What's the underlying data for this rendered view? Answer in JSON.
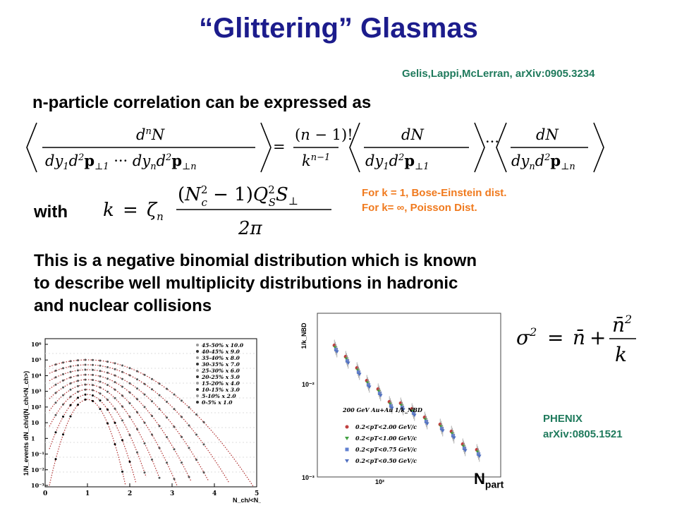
{
  "slide": {
    "title": "“Glittering” Glasmas",
    "reference": "Gelis,Lappi,McLerran, arXiv:0905.3234",
    "heading": "n-particle correlation can be expressed as",
    "with_label": "with",
    "notes": [
      "For k = 1, Bose-Einstein dist.",
      "For k= ∞,  Poisson Dist."
    ],
    "body_lines": [
      "This is a negative binomial distribution which is known",
      "to describe well multiplicity distributions in hadronic",
      "and nuclear collisions"
    ],
    "phenix_lines": [
      "PHENIX",
      "arXiv:0805.1521"
    ],
    "npart_main": "N",
    "npart_sub": "part"
  },
  "equations": {
    "correlation": "⟨dⁿN / dy₁d²p⊥1 ⋯ dyₙd²p⊥n⟩ = (n−1)!/kⁿ⁻¹ ⟨dN / dy₁d²p⊥1⟩ ⋯ ⟨dN / dyₙd²p⊥n⟩",
    "k_def": "k = ζₙ (N_c² − 1) Q_S² S⊥ / 2π",
    "variance": "σ² = n̄ + n̄²/k"
  },
  "left_plot": {
    "ylabel": "1/N_events dN_ch/d(N_ch/<N_ch>)",
    "xlabel": "N_ch/<N_ch>",
    "x_ticks": [
      "0",
      "1",
      "2",
      "3",
      "4",
      "5"
    ],
    "y_ticks": [
      "10⁶",
      "10⁵",
      "10⁴",
      "10³",
      "10²",
      "10",
      "1",
      "10⁻¹",
      "10⁻²",
      "10⁻³"
    ],
    "legend": [
      "45-50% x 10.0",
      "40-45% x 9.0",
      "35-40% x 8.0",
      "30-35% x 7.0",
      "25-30% x 6.0",
      "20-25% x 5.0",
      "15-20% x 4.0",
      "10-15% x 3.0",
      "5-10% x 2.0",
      "0-5% x 1.0"
    ]
  },
  "right_plot": {
    "ylabel": "1/k_NBD",
    "y_ticks": [
      "10⁻²",
      "10⁻³"
    ],
    "x_tick": "10²",
    "legend_title": "200 GeV Au+Au 1/k_NBD",
    "legend": [
      "0.2<pT<2.00 GeV/c",
      "0.2<pT<1.00 GeV/c",
      "0.2<pT<0.75 GeV/c",
      "0.2<pT<0.50 GeV/c"
    ]
  }
}
